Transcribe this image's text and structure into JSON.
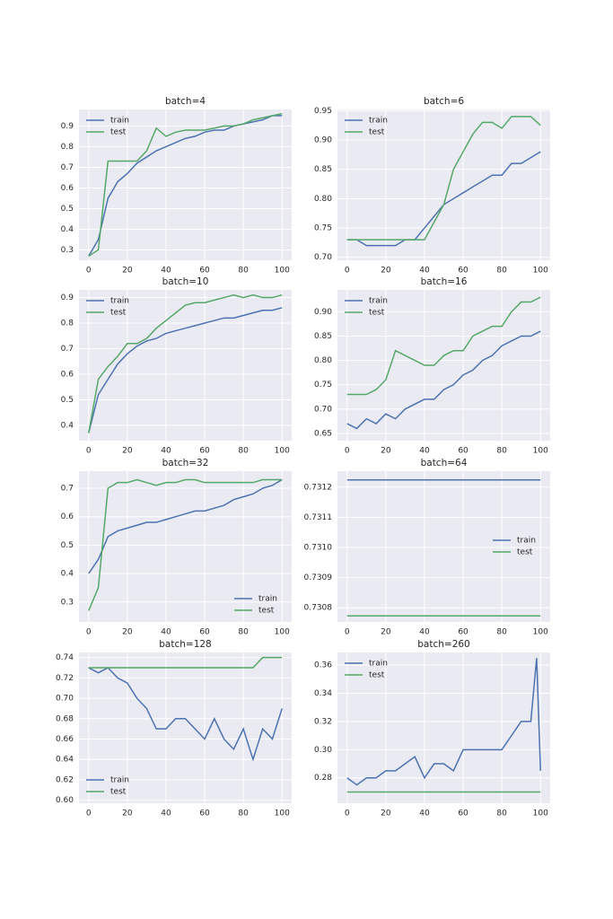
{
  "chart_data": [
    {
      "type": "line",
      "title": "batch=4",
      "legend": "upper left",
      "grid": true,
      "x": [
        0,
        5,
        10,
        15,
        20,
        25,
        30,
        35,
        40,
        45,
        50,
        55,
        60,
        65,
        70,
        75,
        80,
        85,
        90,
        95,
        100
      ],
      "xlim": [
        -5,
        105
      ],
      "xticks": [
        0,
        20,
        40,
        60,
        80,
        100
      ],
      "ylim": [
        0.25,
        0.98
      ],
      "yticks": [
        0.3,
        0.4,
        0.5,
        0.6,
        0.7,
        0.8,
        0.9
      ],
      "series": [
        {
          "name": "train",
          "color": "#4c72b0",
          "values": [
            0.27,
            0.35,
            0.55,
            0.63,
            0.67,
            0.72,
            0.75,
            0.78,
            0.8,
            0.82,
            0.84,
            0.85,
            0.87,
            0.88,
            0.88,
            0.9,
            0.91,
            0.92,
            0.93,
            0.95,
            0.95
          ]
        },
        {
          "name": "test",
          "color": "#55a868",
          "values": [
            0.27,
            0.3,
            0.73,
            0.73,
            0.73,
            0.73,
            0.78,
            0.89,
            0.85,
            0.87,
            0.88,
            0.88,
            0.88,
            0.89,
            0.9,
            0.9,
            0.91,
            0.93,
            0.94,
            0.95,
            0.96
          ]
        }
      ]
    },
    {
      "type": "line",
      "title": "batch=6",
      "legend": "upper left",
      "grid": true,
      "x": [
        0,
        5,
        10,
        15,
        20,
        25,
        30,
        35,
        40,
        45,
        50,
        55,
        60,
        65,
        70,
        75,
        80,
        85,
        90,
        95,
        100
      ],
      "xlim": [
        -5,
        105
      ],
      "xticks": [
        0,
        20,
        40,
        60,
        80,
        100
      ],
      "ylim": [
        0.695,
        0.952
      ],
      "yticks": [
        {
          "value": 0.7,
          "label": "0.70"
        },
        0.75,
        {
          "value": 0.8,
          "label": "0.80"
        },
        0.85,
        {
          "value": 0.9,
          "label": "0.90"
        },
        0.95
      ],
      "series": [
        {
          "name": "train",
          "color": "#4c72b0",
          "values": [
            0.73,
            0.73,
            0.72,
            0.72,
            0.72,
            0.72,
            0.73,
            0.73,
            0.75,
            0.77,
            0.79,
            0.8,
            0.81,
            0.82,
            0.83,
            0.84,
            0.84,
            0.86,
            0.86,
            0.87,
            0.88
          ]
        },
        {
          "name": "test",
          "color": "#55a868",
          "values": [
            0.73,
            0.73,
            0.73,
            0.73,
            0.73,
            0.73,
            0.73,
            0.73,
            0.73,
            0.76,
            0.79,
            0.85,
            0.88,
            0.91,
            0.93,
            0.93,
            0.92,
            0.94,
            0.94,
            0.94,
            0.925
          ]
        }
      ]
    },
    {
      "type": "line",
      "title": "batch=10",
      "legend": "upper left",
      "grid": true,
      "x": [
        0,
        5,
        10,
        15,
        20,
        25,
        30,
        35,
        40,
        45,
        50,
        55,
        60,
        65,
        70,
        75,
        80,
        85,
        90,
        95,
        100
      ],
      "xlim": [
        -5,
        105
      ],
      "xticks": [
        0,
        20,
        40,
        60,
        80,
        100
      ],
      "ylim": [
        0.34,
        0.93
      ],
      "yticks": [
        0.4,
        0.5,
        0.6,
        0.7,
        0.8,
        0.9
      ],
      "series": [
        {
          "name": "train",
          "color": "#4c72b0",
          "values": [
            0.37,
            0.52,
            0.58,
            0.64,
            0.68,
            0.71,
            0.73,
            0.74,
            0.76,
            0.77,
            0.78,
            0.79,
            0.8,
            0.81,
            0.82,
            0.82,
            0.83,
            0.84,
            0.85,
            0.85,
            0.86
          ]
        },
        {
          "name": "test",
          "color": "#55a868",
          "values": [
            0.37,
            0.58,
            0.63,
            0.67,
            0.72,
            0.72,
            0.74,
            0.78,
            0.81,
            0.84,
            0.87,
            0.88,
            0.88,
            0.89,
            0.9,
            0.91,
            0.9,
            0.91,
            0.9,
            0.9,
            0.91
          ]
        }
      ]
    },
    {
      "type": "line",
      "title": "batch=16",
      "legend": "upper left",
      "grid": true,
      "x": [
        0,
        5,
        10,
        15,
        20,
        25,
        30,
        35,
        40,
        45,
        50,
        55,
        60,
        65,
        70,
        75,
        80,
        85,
        90,
        95,
        100
      ],
      "xlim": [
        -5,
        105
      ],
      "xticks": [
        0,
        20,
        40,
        60,
        80,
        100
      ],
      "ylim": [
        0.635,
        0.945
      ],
      "yticks": [
        0.65,
        {
          "value": 0.7,
          "label": "0.70"
        },
        0.75,
        {
          "value": 0.8,
          "label": "0.80"
        },
        0.85,
        {
          "value": 0.9,
          "label": "0.90"
        }
      ],
      "series": [
        {
          "name": "train",
          "color": "#4c72b0",
          "values": [
            0.67,
            0.66,
            0.68,
            0.67,
            0.69,
            0.68,
            0.7,
            0.71,
            0.72,
            0.72,
            0.74,
            0.75,
            0.77,
            0.78,
            0.8,
            0.81,
            0.83,
            0.84,
            0.85,
            0.85,
            0.86
          ]
        },
        {
          "name": "test",
          "color": "#55a868",
          "values": [
            0.73,
            0.73,
            0.73,
            0.74,
            0.76,
            0.82,
            0.81,
            0.8,
            0.79,
            0.79,
            0.81,
            0.82,
            0.82,
            0.85,
            0.86,
            0.87,
            0.87,
            0.9,
            0.92,
            0.92,
            0.93
          ]
        }
      ]
    },
    {
      "type": "line",
      "title": "batch=32",
      "legend": "lower right",
      "grid": true,
      "x": [
        0,
        5,
        10,
        15,
        20,
        25,
        30,
        35,
        40,
        45,
        50,
        55,
        60,
        65,
        70,
        75,
        80,
        85,
        90,
        95,
        100
      ],
      "xlim": [
        -5,
        105
      ],
      "xticks": [
        0,
        20,
        40,
        60,
        80,
        100
      ],
      "ylim": [
        0.23,
        0.76
      ],
      "yticks": [
        0.3,
        0.4,
        0.5,
        0.6,
        0.7
      ],
      "series": [
        {
          "name": "train",
          "color": "#4c72b0",
          "values": [
            0.4,
            0.45,
            0.53,
            0.55,
            0.56,
            0.57,
            0.58,
            0.58,
            0.59,
            0.6,
            0.61,
            0.62,
            0.62,
            0.63,
            0.64,
            0.66,
            0.67,
            0.68,
            0.7,
            0.71,
            0.73
          ]
        },
        {
          "name": "test",
          "color": "#55a868",
          "values": [
            0.27,
            0.35,
            0.7,
            0.72,
            0.72,
            0.73,
            0.72,
            0.71,
            0.72,
            0.72,
            0.73,
            0.73,
            0.72,
            0.72,
            0.72,
            0.72,
            0.72,
            0.72,
            0.73,
            0.73,
            0.73
          ]
        }
      ]
    },
    {
      "type": "line",
      "title": "batch=64",
      "legend": "center right",
      "grid": true,
      "x": [
        0,
        100
      ],
      "xlim": [
        -5,
        105
      ],
      "xticks": [
        0,
        20,
        40,
        60,
        80,
        100
      ],
      "ylim": [
        0.730753,
        0.731253
      ],
      "yticks": [
        0.7308,
        0.7309,
        {
          "value": 0.731,
          "label": "0.7310"
        },
        0.7311,
        0.7312
      ],
      "series": [
        {
          "name": "train",
          "color": "#4c72b0",
          "values": [
            0.731224,
            0.731224
          ]
        },
        {
          "name": "test",
          "color": "#55a868",
          "values": [
            0.730773,
            0.730773
          ]
        }
      ]
    },
    {
      "type": "line",
      "title": "batch=128",
      "legend": "lower left",
      "grid": true,
      "x": [
        0,
        5,
        10,
        15,
        20,
        25,
        30,
        35,
        40,
        45,
        50,
        55,
        60,
        65,
        70,
        75,
        80,
        85,
        90,
        95,
        100
      ],
      "xlim": [
        -5,
        105
      ],
      "xticks": [
        0,
        20,
        40,
        60,
        80,
        100
      ],
      "ylim": [
        0.597,
        0.745
      ],
      "yticks": [
        {
          "value": 0.6,
          "label": "0.60"
        },
        0.62,
        0.64,
        0.66,
        0.68,
        {
          "value": 0.7,
          "label": "0.70"
        },
        0.72,
        0.74
      ],
      "series": [
        {
          "name": "train",
          "color": "#4c72b0",
          "values": [
            0.73,
            0.725,
            0.73,
            0.72,
            0.715,
            0.7,
            0.69,
            0.67,
            0.67,
            0.68,
            0.68,
            0.67,
            0.66,
            0.68,
            0.66,
            0.65,
            0.67,
            0.64,
            0.67,
            0.66,
            0.69
          ]
        },
        {
          "name": "test",
          "color": "#55a868",
          "values": [
            0.73,
            0.73,
            0.73,
            0.73,
            0.73,
            0.73,
            0.73,
            0.73,
            0.73,
            0.73,
            0.73,
            0.73,
            0.73,
            0.73,
            0.73,
            0.73,
            0.73,
            0.73,
            0.74,
            0.74,
            0.74
          ]
        }
      ]
    },
    {
      "type": "line",
      "title": "batch=260",
      "legend": "upper left",
      "grid": true,
      "x": [
        0,
        5,
        10,
        15,
        20,
        25,
        30,
        35,
        40,
        45,
        50,
        55,
        60,
        65,
        70,
        75,
        80,
        85,
        90,
        95,
        98,
        100
      ],
      "xlim": [
        -5,
        105
      ],
      "xticks": [
        0,
        20,
        40,
        60,
        80,
        100
      ],
      "ylim": [
        0.262,
        0.369
      ],
      "yticks": [
        0.28,
        {
          "value": 0.3,
          "label": "0.30"
        },
        0.32,
        0.34,
        0.36
      ],
      "series": [
        {
          "name": "train",
          "color": "#4c72b0",
          "values": [
            0.28,
            0.275,
            0.28,
            0.28,
            0.285,
            0.285,
            0.29,
            0.295,
            0.28,
            0.29,
            0.29,
            0.285,
            0.3,
            0.3,
            0.3,
            0.3,
            0.3,
            0.31,
            0.32,
            0.32,
            0.365,
            0.285
          ]
        },
        {
          "name": "test",
          "color": "#55a868",
          "values": [
            0.27,
            0.27,
            0.27,
            0.27,
            0.27,
            0.27,
            0.27,
            0.27,
            0.27,
            0.27,
            0.27,
            0.27,
            0.27,
            0.27,
            0.27,
            0.27,
            0.27,
            0.27,
            0.27,
            0.27,
            0.27,
            0.27
          ]
        }
      ]
    }
  ]
}
